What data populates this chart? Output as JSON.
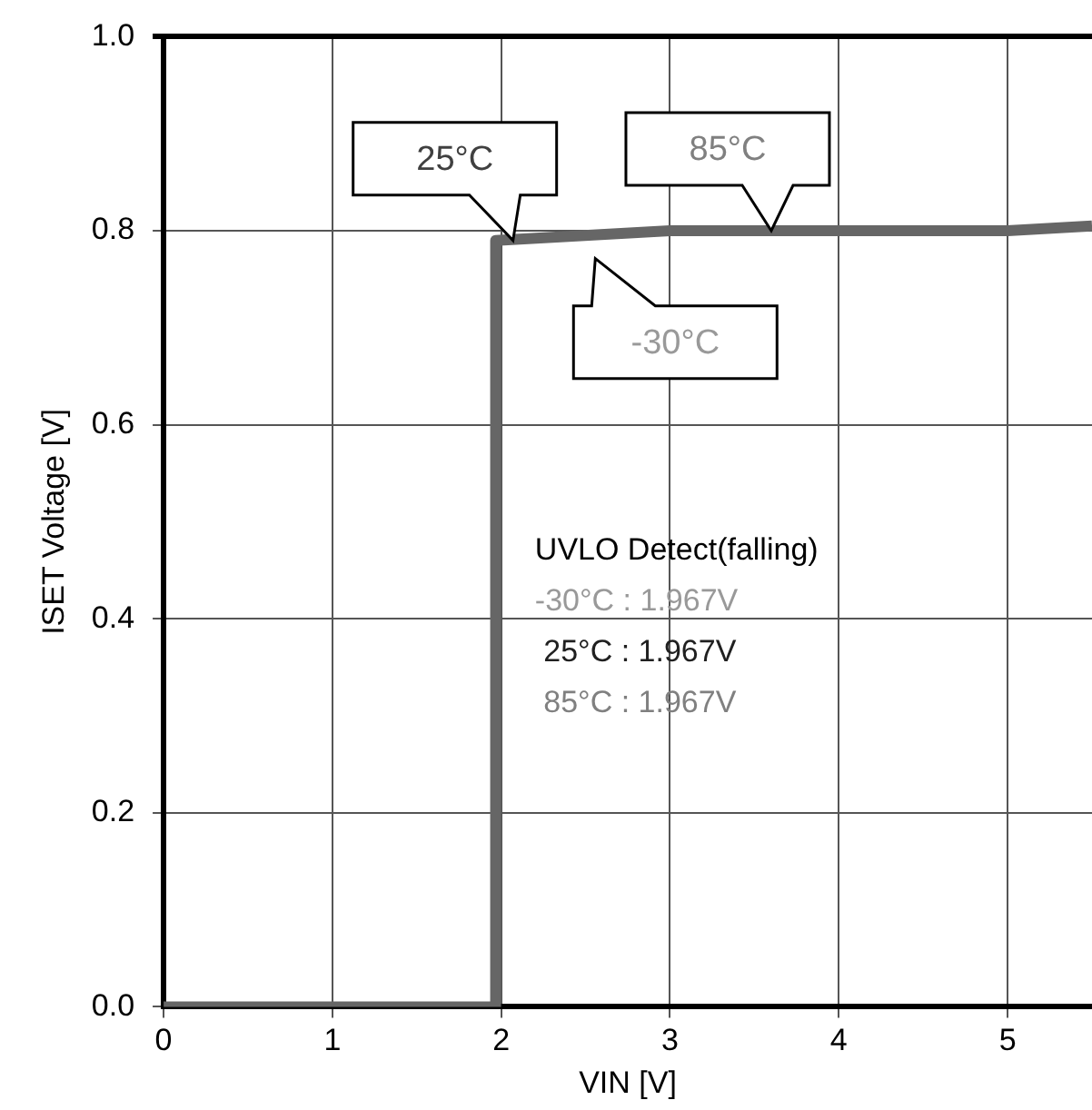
{
  "chart_data": {
    "type": "line",
    "xlabel": "VIN [V]",
    "ylabel": "ISET Voltage [V]",
    "xlim": [
      0,
      5.5
    ],
    "xticks": [
      0,
      1,
      2,
      3,
      4,
      5
    ],
    "ylim": [
      0,
      1
    ],
    "yticks": [
      {
        "value": 0,
        "label": "0.0"
      },
      0.2,
      0.4,
      0.6,
      0.8,
      {
        "value": 1,
        "label": "1.0"
      }
    ],
    "grid": true,
    "legend": false,
    "marker": "none",
    "line_style": "solid",
    "series": [
      {
        "color": "#666666",
        "x": [
          0,
          1.967,
          1.967,
          3,
          5,
          5.5
        ],
        "values": [
          0,
          0,
          0.79,
          0.8,
          0.8,
          0.805
        ]
      }
    ],
    "annotations": [
      {
        "text": "25°C",
        "x": 2.07,
        "y": 0.79
      },
      {
        "text": "85°C",
        "x": 3.6,
        "y": 0.8
      },
      {
        "text": "-30°C",
        "x": 2.45,
        "y": 0.79
      },
      "UVLO Detect(falling)",
      "-30°C : 1.967V",
      " 25°C : 1.967V",
      " 85°C : 1.967V"
    ]
  }
}
